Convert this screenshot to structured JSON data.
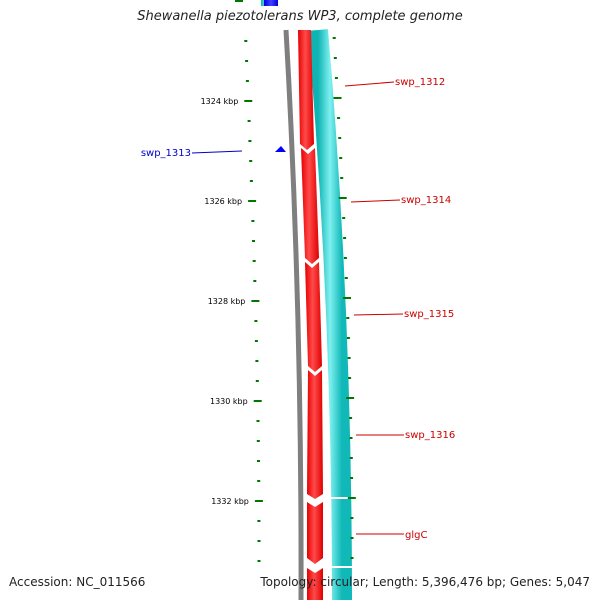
{
  "title": "Shewanella piezotolerans WP3, complete genome",
  "accession": "Accession: NC_011566",
  "topology": "Topology: circular; Length: 5,396,476 bp; Genes: 5,047",
  "scale": {
    "unit": "kbp",
    "major_labels": [
      "1324 kbp",
      "1326 kbp",
      "1328 kbp",
      "1330 kbp",
      "1332 kbp"
    ]
  },
  "genes": [
    {
      "label": "swp_1312",
      "strand": "forward",
      "color": "#cc0000"
    },
    {
      "label": "swp_1313",
      "strand": "reverse",
      "color": "#0000cc"
    },
    {
      "label": "swp_1314",
      "strand": "forward",
      "color": "#cc0000"
    },
    {
      "label": "swp_1315",
      "strand": "forward",
      "color": "#cc0000"
    },
    {
      "label": "swp_1316",
      "strand": "forward",
      "color": "#cc0000"
    },
    {
      "label": "glgC",
      "strand": "forward",
      "color": "#cc0000"
    }
  ],
  "colors": {
    "backbone": "#7f7f7f",
    "forward_cds": "#ff0000",
    "reverse_cds": "#0000ff",
    "gc_track": "#1ec8c8",
    "tick": "#007700",
    "forward_label": "#cc0000",
    "reverse_label": "#0000cc"
  }
}
